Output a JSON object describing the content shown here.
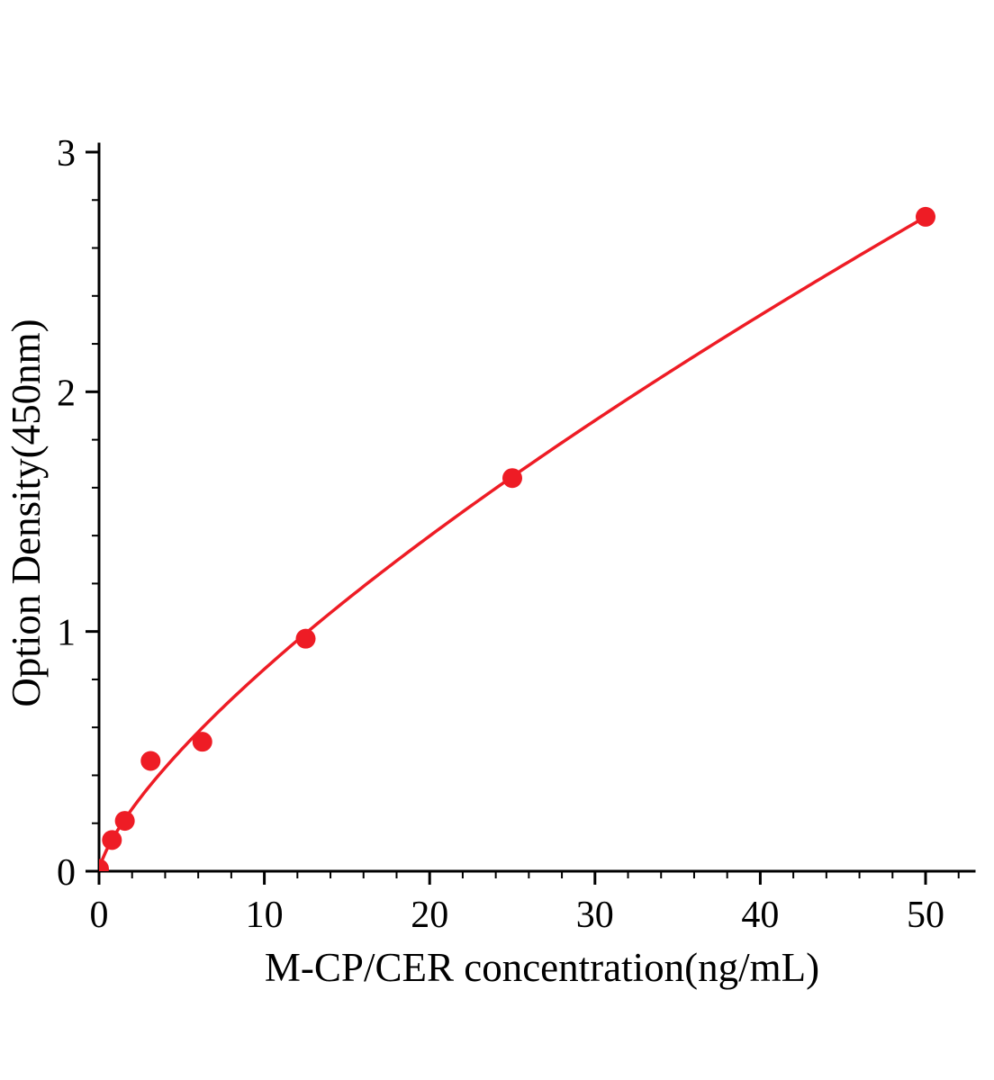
{
  "chart_data": {
    "type": "scatter",
    "title": "",
    "xlabel": "M-CP/CER concentration(ng/mL)",
    "ylabel": "Option Density(450nm)",
    "xlim": [
      0,
      52.8
    ],
    "ylim": [
      0,
      3.05
    ],
    "xticks": [
      0,
      10,
      20,
      30,
      40,
      50
    ],
    "yticks": [
      0,
      1,
      2,
      3
    ],
    "x_minor_step": 2,
    "y_minor_step": 0.2,
    "grid": false,
    "legend_position": "none",
    "point_color": "#ee1c25",
    "line_color": "#ee1c25",
    "axis_color": "#000000",
    "points": [
      {
        "x": 0,
        "y": 0.01
      },
      {
        "x": 0.78,
        "y": 0.13
      },
      {
        "x": 1.56,
        "y": 0.21
      },
      {
        "x": 3.12,
        "y": 0.46
      },
      {
        "x": 6.25,
        "y": 0.54
      },
      {
        "x": 12.5,
        "y": 0.97
      },
      {
        "x": 25,
        "y": 1.64
      },
      {
        "x": 50,
        "y": 2.73
      }
    ],
    "curve_fit": {
      "type": "power",
      "a": 0.157,
      "b": 0.73,
      "x_start": 0,
      "x_end": 50
    }
  }
}
